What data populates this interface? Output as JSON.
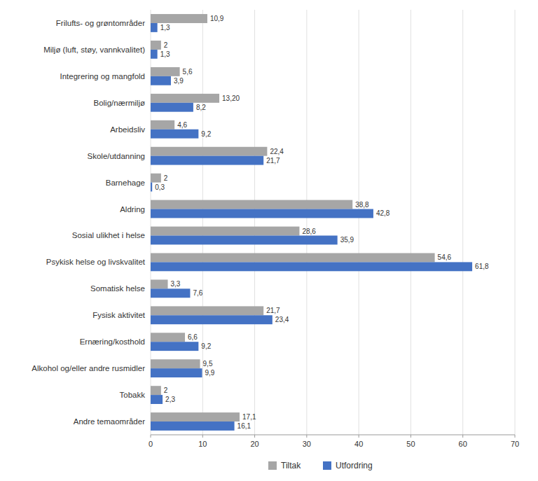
{
  "chart_data": {
    "type": "bar",
    "orientation": "horizontal",
    "categories": [
      "Andre temaområder",
      "Tobakk",
      "Alkohol og/eller andre rusmidler",
      "Ernæring/kosthold",
      "Fysisk aktivitet",
      "Somatisk helse",
      "Psykisk helse og livskvalitet",
      "Sosial ulikhet i helse",
      "Aldring",
      "Barnehage",
      "Skole/utdanning",
      "Arbeidsliv",
      "Bolig/nærmiljø",
      "Integrering og mangfold",
      "Miljø (luft, støy, vannkvalitet)",
      "Frilufts- og grøntområder"
    ],
    "series": [
      {
        "name": "Tiltak",
        "color": "#a6a6a6",
        "values": [
          17.1,
          2.0,
          9.5,
          6.6,
          21.7,
          3.3,
          54.6,
          28.6,
          38.8,
          2.0,
          22.4,
          4.6,
          13.2,
          5.6,
          2.0,
          10.9
        ],
        "value_labels": [
          "17,1",
          "2",
          "9,5",
          "6,6",
          "21,7",
          "3,3",
          "54,6",
          "28,6",
          "38,8",
          "2",
          "22,4",
          "4,6",
          "13,20",
          "5,6",
          "2",
          "10,9"
        ]
      },
      {
        "name": "Utfordring",
        "color": "#4472c4",
        "values": [
          16.1,
          2.3,
          9.9,
          9.2,
          23.4,
          7.6,
          61.8,
          35.9,
          42.8,
          0.3,
          21.7,
          9.2,
          8.2,
          3.9,
          1.3,
          1.3
        ],
        "value_labels": [
          "16,1",
          "2,3",
          "9,9",
          "9,2",
          "23,4",
          "7,6",
          "61,8",
          "35,9",
          "42,8",
          "0,3",
          "21,7",
          "9,2",
          "8,2",
          "3,9",
          "1,3",
          "1,3"
        ]
      }
    ],
    "xlim": [
      0,
      70
    ],
    "xticks": [
      0,
      10,
      20,
      30,
      40,
      50,
      60,
      70
    ],
    "grid": true,
    "legend": "bottom",
    "data_labels": true
  }
}
